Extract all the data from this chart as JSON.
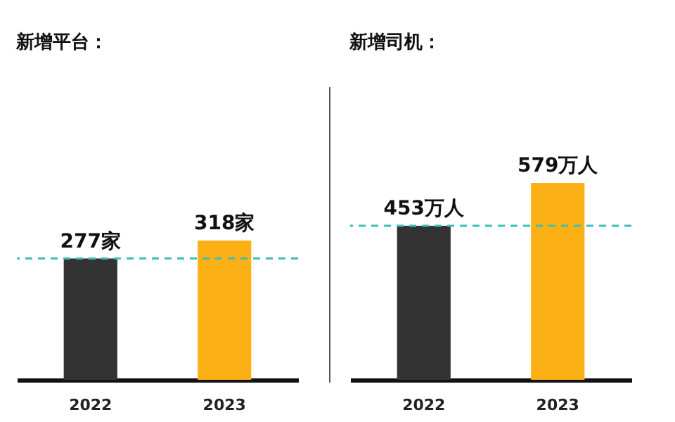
{
  "chart_data": [
    {
      "type": "bar",
      "title": "新增平台：",
      "categories": [
        "2022",
        "2023"
      ],
      "values": [
        277,
        318
      ],
      "colors": [
        "#333333",
        "#fbb116"
      ],
      "value_labels": [
        "277家",
        "318家"
      ],
      "tick_labels": "x",
      "ref_lines": [
        {
          "axis": "y",
          "value": 277,
          "color": "#3dbfb8",
          "line_style": "dashed"
        }
      ]
    },
    {
      "type": "bar",
      "title": "新增司机：",
      "categories": [
        "2022",
        "2023"
      ],
      "values": [
        453,
        579
      ],
      "colors": [
        "#333333",
        "#fbb116"
      ],
      "value_labels": [
        "453万人",
        "579万人"
      ],
      "tick_labels": "x",
      "ref_lines": [
        {
          "axis": "y",
          "value": 453,
          "color": "#3dbfb8",
          "line_style": "dashed"
        }
      ]
    }
  ]
}
